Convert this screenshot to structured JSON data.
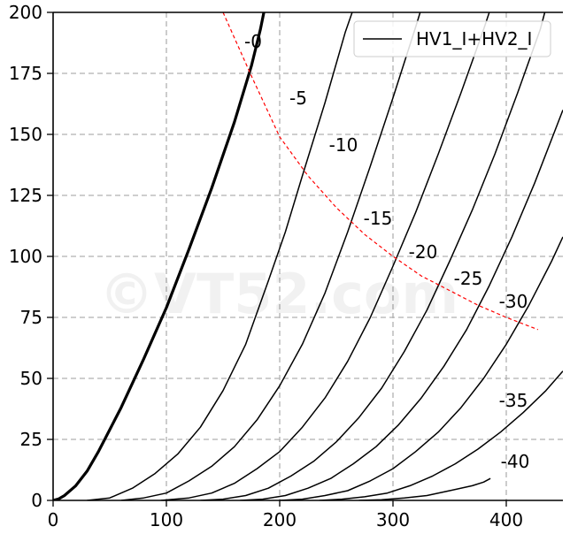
{
  "chart_data": {
    "type": "line",
    "title": "",
    "xlabel": "",
    "ylabel": "",
    "xlim": [
      0,
      450
    ],
    "ylim": [
      0,
      200
    ],
    "x_ticks": [
      0,
      100,
      200,
      300,
      400
    ],
    "y_ticks": [
      0,
      25,
      50,
      75,
      100,
      125,
      150,
      175,
      200
    ],
    "grid": true,
    "legend": {
      "label": "HV1_I+HV2_I",
      "placement": "top-right"
    },
    "watermark": "©VT52.com",
    "series": [
      {
        "label": "-0",
        "points": [
          [
            0,
            0
          ],
          [
            5,
            0.6
          ],
          [
            10,
            2
          ],
          [
            20,
            6
          ],
          [
            30,
            12
          ],
          [
            40,
            20
          ],
          [
            50,
            29
          ],
          [
            60,
            38
          ],
          [
            80,
            58
          ],
          [
            100,
            79
          ],
          [
            120,
            103
          ],
          [
            140,
            128
          ],
          [
            160,
            155
          ],
          [
            175,
            178
          ],
          [
            183,
            193
          ],
          [
            186,
            200
          ]
        ]
      },
      {
        "label": "-5",
        "points": [
          [
            30,
            0
          ],
          [
            50,
            1
          ],
          [
            70,
            5
          ],
          [
            90,
            11
          ],
          [
            110,
            19
          ],
          [
            130,
            30
          ],
          [
            150,
            45
          ],
          [
            170,
            64
          ],
          [
            190,
            90
          ],
          [
            205,
            110
          ],
          [
            220,
            133
          ],
          [
            240,
            163
          ],
          [
            258,
            192
          ],
          [
            264,
            200
          ]
        ]
      },
      {
        "label": "-10",
        "points": [
          [
            60,
            0
          ],
          [
            80,
            1
          ],
          [
            100,
            3
          ],
          [
            120,
            8
          ],
          [
            140,
            14
          ],
          [
            160,
            22
          ],
          [
            180,
            33
          ],
          [
            200,
            47
          ],
          [
            220,
            64
          ],
          [
            240,
            85
          ],
          [
            260,
            110
          ],
          [
            280,
            137
          ],
          [
            300,
            165
          ],
          [
            320,
            194
          ],
          [
            324,
            200
          ]
        ]
      },
      {
        "label": "-15",
        "points": [
          [
            95,
            0
          ],
          [
            120,
            1
          ],
          [
            140,
            3
          ],
          [
            160,
            7
          ],
          [
            180,
            13
          ],
          [
            200,
            20
          ],
          [
            220,
            30
          ],
          [
            240,
            42
          ],
          [
            260,
            57
          ],
          [
            280,
            75
          ],
          [
            300,
            96
          ],
          [
            320,
            118
          ],
          [
            340,
            142
          ],
          [
            360,
            167
          ],
          [
            380,
            193
          ],
          [
            385,
            200
          ]
        ]
      },
      {
        "label": "-20",
        "points": [
          [
            130,
            0
          ],
          [
            150,
            0.5
          ],
          [
            170,
            2
          ],
          [
            190,
            5
          ],
          [
            210,
            10
          ],
          [
            230,
            16
          ],
          [
            250,
            24
          ],
          [
            270,
            34
          ],
          [
            290,
            46
          ],
          [
            310,
            61
          ],
          [
            330,
            78
          ],
          [
            350,
            98
          ],
          [
            370,
            119
          ],
          [
            390,
            142
          ],
          [
            410,
            167
          ],
          [
            430,
            193
          ],
          [
            434,
            200
          ]
        ]
      },
      {
        "label": "-25",
        "points": [
          [
            165,
            0
          ],
          [
            185,
            0.5
          ],
          [
            205,
            2
          ],
          [
            225,
            5
          ],
          [
            245,
            9
          ],
          [
            265,
            15
          ],
          [
            285,
            22
          ],
          [
            305,
            31
          ],
          [
            325,
            42
          ],
          [
            345,
            55
          ],
          [
            365,
            70
          ],
          [
            385,
            88
          ],
          [
            405,
            108
          ],
          [
            425,
            130
          ],
          [
            445,
            154
          ],
          [
            450,
            160
          ]
        ]
      },
      {
        "label": "-30",
        "points": [
          [
            200,
            0
          ],
          [
            220,
            0.5
          ],
          [
            240,
            2
          ],
          [
            260,
            4
          ],
          [
            280,
            8
          ],
          [
            300,
            13
          ],
          [
            320,
            20
          ],
          [
            340,
            28
          ],
          [
            360,
            38
          ],
          [
            380,
            50
          ],
          [
            400,
            64
          ],
          [
            420,
            80
          ],
          [
            440,
            98
          ],
          [
            450,
            108
          ]
        ]
      },
      {
        "label": "-35",
        "points": [
          [
            235,
            0
          ],
          [
            255,
            0.5
          ],
          [
            275,
            1.5
          ],
          [
            295,
            3
          ],
          [
            315,
            6
          ],
          [
            335,
            10
          ],
          [
            355,
            15
          ],
          [
            375,
            21
          ],
          [
            395,
            28
          ],
          [
            415,
            36
          ],
          [
            435,
            45
          ],
          [
            450,
            53
          ]
        ]
      },
      {
        "label": "-40",
        "points": [
          [
            270,
            0
          ],
          [
            290,
            0.3
          ],
          [
            310,
            1
          ],
          [
            330,
            2
          ],
          [
            350,
            4
          ],
          [
            370,
            6
          ],
          [
            380,
            7.5
          ],
          [
            386,
            9
          ]
        ]
      }
    ],
    "max_dissipation_curve": {
      "color": "#ff0000",
      "points": [
        [
          150,
          200
        ],
        [
          175,
          174
        ],
        [
          200,
          149
        ],
        [
          225,
          133
        ],
        [
          250,
          120
        ],
        [
          275,
          109
        ],
        [
          300,
          100
        ],
        [
          325,
          92
        ],
        [
          350,
          86
        ],
        [
          375,
          80
        ],
        [
          400,
          75
        ],
        [
          428,
          70
        ]
      ]
    }
  }
}
